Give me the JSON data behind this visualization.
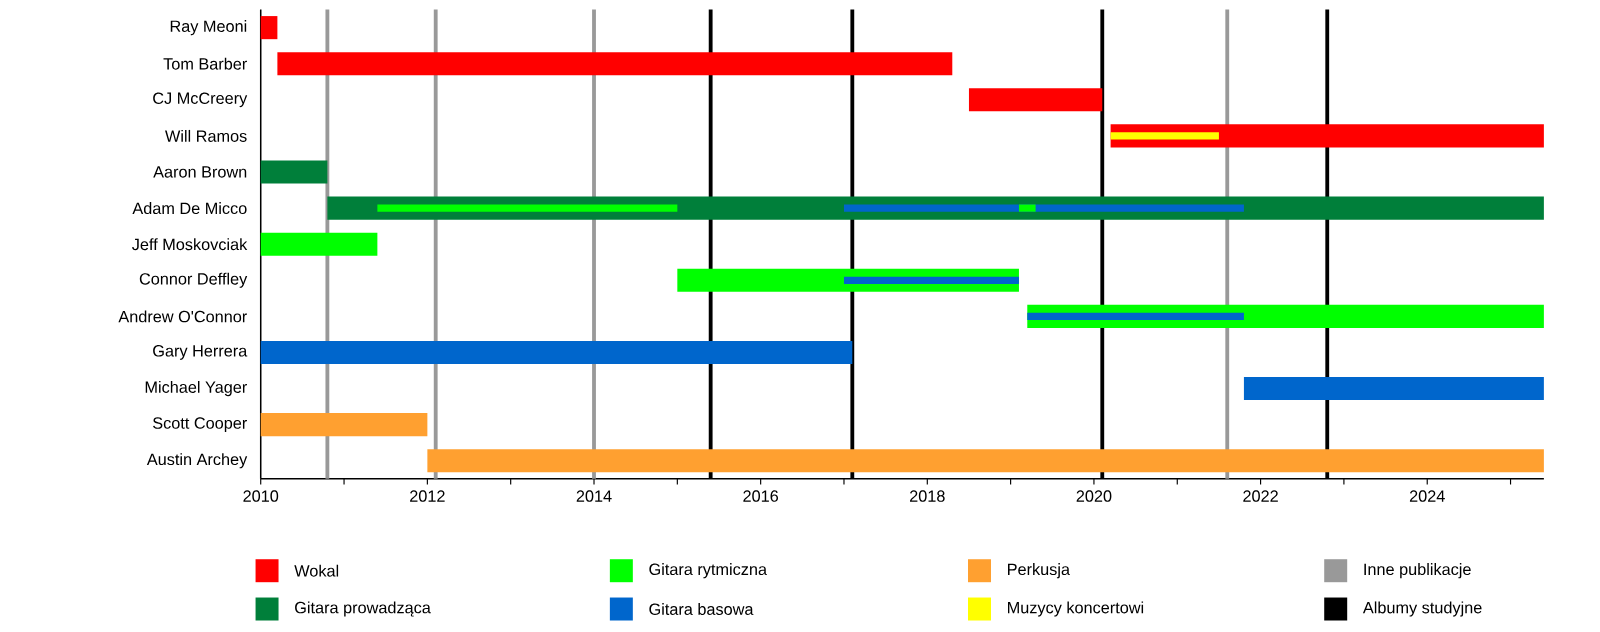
{
  "chart_data": {
    "type": "bar",
    "orientation": "horizontal",
    "categories": [
      "Ray Meoni",
      "Tom Barber",
      "CJ McCreery",
      "Will Ramos",
      "Aaron Brown",
      "Adam De Micco",
      "Jeff Moskovciak",
      "Connor Deffley",
      "Andrew O'Connor",
      "Gary Herrera",
      "Michael Yager",
      "Scott Cooper",
      "Austin Archey"
    ],
    "series": [
      {
        "name": "Wokal",
        "color": "#ff0000",
        "base": [
          2010,
          2010.2,
          2018.5,
          2020.2,
          null,
          null,
          null,
          null,
          null,
          null,
          null,
          null,
          null
        ],
        "values": [
          0.2,
          8.1,
          1.6,
          5.2,
          null,
          null,
          null,
          null,
          null,
          null,
          null,
          null,
          null
        ]
      },
      {
        "name": "Gitara prowadząca",
        "color": "#007f3a",
        "base": [
          null,
          null,
          null,
          null,
          2010,
          2010.8,
          null,
          null,
          null,
          null,
          null,
          null,
          null
        ],
        "values": [
          null,
          null,
          null,
          null,
          0.8,
          14.6,
          null,
          null,
          null,
          null,
          null,
          null,
          null
        ]
      },
      {
        "name": "Gitara rytmiczna",
        "color": "#00ff00",
        "base": [
          null,
          null,
          null,
          null,
          null,
          2011.4,
          2010,
          2015.0,
          2019.2,
          null,
          null,
          null,
          null
        ],
        "values": [
          null,
          null,
          null,
          null,
          null,
          3.6,
          1.4,
          4.1,
          6.2,
          null,
          null,
          null,
          null
        ]
      },
      {
        "name": "Gitara basowa",
        "color": "#0066cc",
        "base": [
          null,
          null,
          null,
          null,
          null,
          2017.0,
          null,
          2017.0,
          2019.2,
          2010,
          2021.8,
          null,
          null
        ],
        "values": [
          null,
          null,
          null,
          null,
          null,
          4.8,
          null,
          2.1,
          2.6,
          7.1,
          3.6,
          null,
          null
        ]
      },
      {
        "name": "Perkusja",
        "color": "#ffa030",
        "base": [
          null,
          null,
          null,
          null,
          null,
          null,
          null,
          null,
          null,
          null,
          null,
          2010,
          2012.0
        ],
        "values": [
          null,
          null,
          null,
          null,
          null,
          null,
          null,
          null,
          null,
          null,
          null,
          2.0,
          13.4
        ]
      },
      {
        "name": "Muzycy koncertowi",
        "color": "#ffff00",
        "base": [
          null,
          null,
          null,
          2020.2,
          null,
          null,
          null,
          null,
          null,
          null,
          null,
          null,
          null
        ],
        "values": [
          null,
          null,
          null,
          1.3,
          null,
          null,
          null,
          null,
          null,
          null,
          null,
          null,
          null
        ]
      },
      {
        "color": "#00ff00",
        "base": [
          null,
          null,
          null,
          null,
          null,
          2019.1,
          null,
          null,
          null,
          null,
          null,
          null,
          null
        ],
        "values": [
          null,
          null,
          null,
          null,
          null,
          0.2,
          null,
          null,
          null,
          null,
          null,
          null,
          null
        ]
      }
    ],
    "xlim": [
      2010,
      2025.4
    ],
    "xticks": [
      2010,
      {
        "value": 2011,
        "label": null
      },
      2012,
      {
        "value": 2013,
        "label": null
      },
      2014,
      {
        "value": 2015,
        "label": null
      },
      2016,
      {
        "value": 2017,
        "label": null
      },
      2018,
      {
        "value": 2019,
        "label": null
      },
      2020,
      {
        "value": 2021,
        "label": null
      },
      2022,
      {
        "value": 2023,
        "label": null
      },
      2024,
      {
        "value": 2025,
        "label": null
      }
    ],
    "ref_lines": [
      {
        "axis": "x",
        "value": 2010.8,
        "label": "Inne publikacje",
        "color": "#999999"
      },
      {
        "axis": "x",
        "value": 2012.1,
        "color": "#999999"
      },
      {
        "axis": "x",
        "value": 2014.0,
        "color": "#999999"
      },
      {
        "axis": "x",
        "value": 2021.6,
        "color": "#999999"
      },
      {
        "axis": "x",
        "value": 2015.4,
        "label": "Albumy studyjne",
        "color": "#000000"
      },
      {
        "axis": "x",
        "value": 2017.1,
        "color": "#000000"
      },
      {
        "axis": "x",
        "value": 2020.1,
        "color": "#000000"
      },
      {
        "axis": "x",
        "value": 2022.8,
        "color": "#000000"
      }
    ],
    "grid": false,
    "legend": "bottom"
  }
}
